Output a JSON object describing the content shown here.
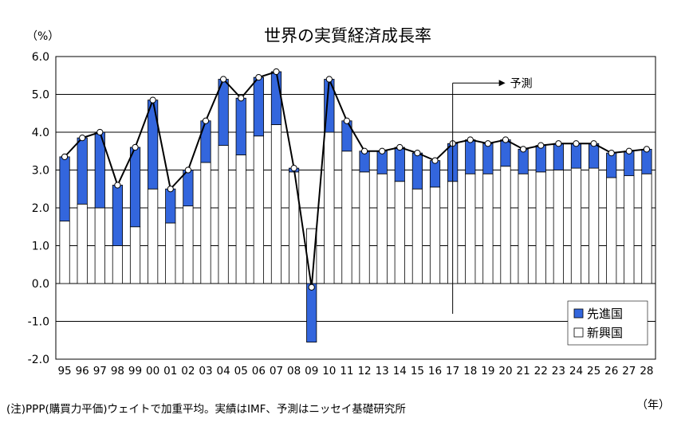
{
  "chart_data": {
    "type": "bar",
    "title": "世界の実質経済成長率",
    "unit_label": "（%）",
    "x_unit_label": "（年）",
    "note": "(注)PPP(購買力平価)ウェイトで加重平均。実績はIMF、予測はニッセイ基礎研究所",
    "forecast_label": "予測",
    "forecast_start": "17",
    "categories": [
      "95",
      "96",
      "97",
      "98",
      "99",
      "00",
      "01",
      "02",
      "03",
      "04",
      "05",
      "06",
      "07",
      "08",
      "09",
      "10",
      "11",
      "12",
      "13",
      "14",
      "15",
      "16",
      "17",
      "18",
      "19",
      "20",
      "21",
      "22",
      "23",
      "24",
      "25",
      "26",
      "27",
      "28"
    ],
    "series": [
      {
        "name": "新興国",
        "color": "#ffffff",
        "values": [
          1.65,
          2.1,
          2.0,
          1.0,
          1.5,
          2.5,
          1.6,
          2.05,
          3.2,
          3.65,
          3.4,
          3.9,
          4.2,
          2.95,
          1.45,
          4.0,
          3.5,
          2.95,
          2.9,
          2.7,
          2.5,
          2.55,
          2.7,
          2.9,
          2.9,
          3.1,
          2.9,
          2.95,
          3.0,
          3.05,
          3.05,
          2.8,
          2.85,
          2.9
        ]
      },
      {
        "name": "先進国",
        "color": "#3366dd",
        "values": [
          1.7,
          1.75,
          2.0,
          1.6,
          2.1,
          2.35,
          0.9,
          0.95,
          1.1,
          1.75,
          1.5,
          1.55,
          1.4,
          0.1,
          -1.55,
          1.4,
          0.8,
          0.55,
          0.6,
          0.9,
          0.95,
          0.7,
          1.0,
          0.9,
          0.8,
          0.7,
          0.65,
          0.7,
          0.7,
          0.65,
          0.65,
          0.65,
          0.65,
          0.65
        ]
      }
    ],
    "total_line": [
      3.35,
      3.85,
      4.0,
      2.6,
      3.6,
      4.85,
      2.5,
      3.0,
      4.3,
      5.4,
      4.9,
      5.45,
      5.6,
      3.05,
      -0.1,
      5.4,
      4.3,
      3.5,
      3.5,
      3.6,
      3.45,
      3.25,
      3.7,
      3.8,
      3.7,
      3.8,
      3.55,
      3.65,
      3.7,
      3.7,
      3.7,
      3.45,
      3.5,
      3.55
    ],
    "ylim": [
      -2.0,
      6.0
    ],
    "yticks": [
      "6.0",
      "5.0",
      "4.0",
      "3.0",
      "2.0",
      "1.0",
      "0.0",
      "-1.0",
      "-2.0"
    ],
    "grid": true,
    "legend_position": "bottom-right"
  }
}
